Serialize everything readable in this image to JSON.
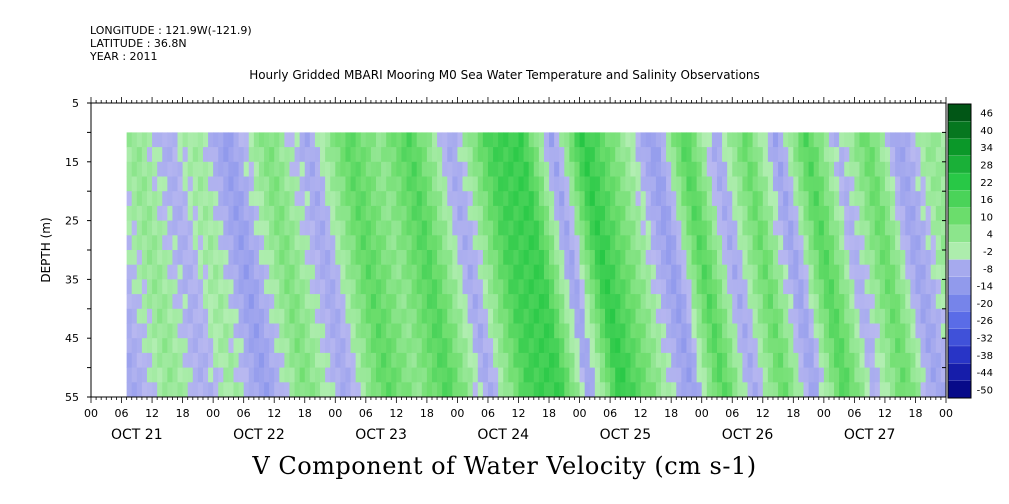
{
  "header": {
    "longitude": "LONGITUDE : 121.9W(-121.9)",
    "latitude": "LATITUDE : 36.8N",
    "year": "YEAR : 2011",
    "title": "Hourly Gridded MBARI Mooring M0 Sea Water Temperature and Salinity Observations"
  },
  "chart_data": {
    "type": "heatmap",
    "title": "V Component of Water Velocity (cm s-1)",
    "subtitle": "Hourly Gridded MBARI Mooring M0 Sea Water Temperature and Salinity Observations",
    "ylabel": "DEPTH (m)",
    "xlabel": "",
    "y_reversed": true,
    "ylim": [
      5,
      55
    ],
    "y_ticks": [
      5,
      15,
      25,
      35,
      45,
      55
    ],
    "y_ticks_all": [
      5,
      10,
      15,
      20,
      25,
      30,
      35,
      40,
      45,
      50,
      55
    ],
    "x_range_hours": [
      0,
      168
    ],
    "x_hour_labels": [
      "00",
      "06",
      "12",
      "18",
      "00",
      "06",
      "12",
      "18",
      "00",
      "06",
      "12",
      "18",
      "00",
      "06",
      "12",
      "18",
      "00",
      "06",
      "12",
      "18",
      "00",
      "06",
      "12",
      "18",
      "00",
      "06",
      "12",
      "18",
      "00"
    ],
    "x_day_labels": [
      "OCT 21",
      "OCT 22",
      "OCT 23",
      "OCT 24",
      "OCT 25",
      "OCT 26",
      "OCT 27"
    ],
    "data_extent": {
      "start_hour": 7,
      "end_hour": 168,
      "min_depth": 10,
      "max_depth": 55
    },
    "colorbar": {
      "labels": [
        "46",
        "40",
        "34",
        "28",
        "22",
        "16",
        "10",
        "4",
        "-2",
        "-8",
        "-14",
        "-20",
        "-26",
        "-32",
        "-38",
        "-44",
        "-50"
      ],
      "range": [
        -50,
        50
      ],
      "step": 6
    },
    "approx_pattern": {
      "description_free": true,
      "band_hours": [
        0,
        8,
        14,
        20,
        26,
        34,
        42,
        50,
        56,
        62,
        70,
        78,
        84,
        90,
        96,
        102,
        110,
        116,
        122,
        128,
        134,
        140,
        146,
        152,
        158,
        164,
        168
      ],
      "band_values": [
        -6,
        6,
        -4,
        4,
        -10,
        10,
        -6,
        16,
        6,
        18,
        -6,
        20,
        22,
        -8,
        24,
        10,
        -10,
        18,
        -6,
        14,
        -8,
        18,
        -4,
        14,
        -8,
        6,
        2
      ]
    }
  }
}
